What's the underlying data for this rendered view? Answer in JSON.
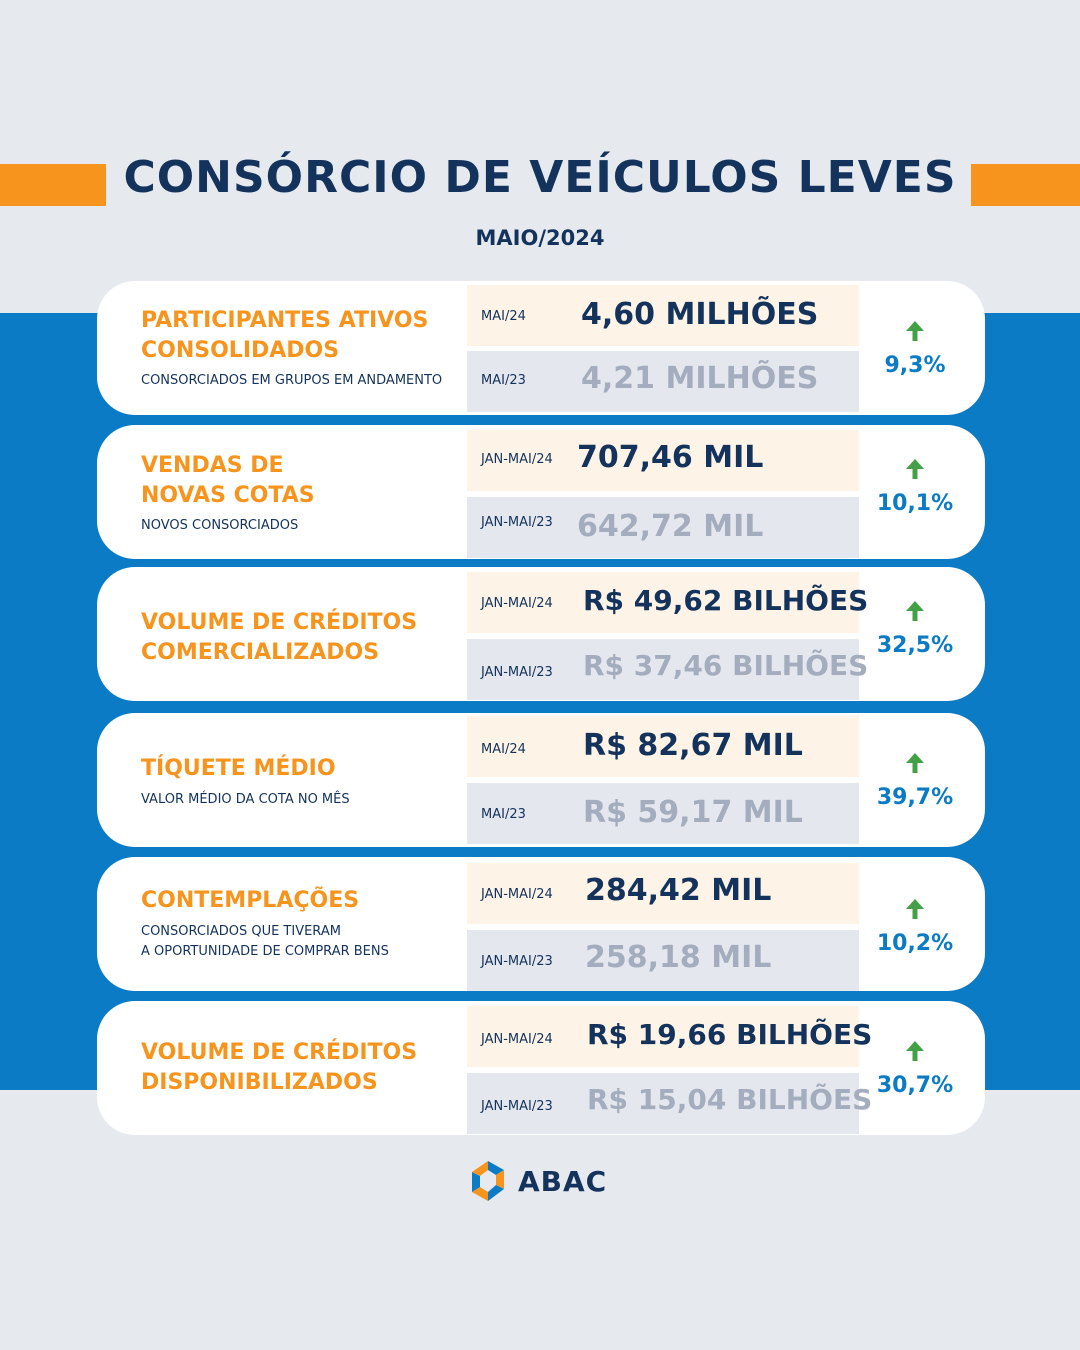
{
  "title": "CONSÓRCIO DE VEÍCULOS LEVES",
  "subtitle": "MAIO/2024",
  "colors": {
    "accent_orange": "#f7941d",
    "navy": "#14335c",
    "blue": "#0a7bc4",
    "up_green": "#43a047"
  },
  "cards": [
    {
      "title": "PARTICIPANTES ATIVOS\nCONSOLIDADOS",
      "description": "CONSORCIADOS EM GRUPOS EM ANDAMENTO",
      "current": {
        "period": "MAI/24",
        "value": "4,60 MILHÕES"
      },
      "previous": {
        "period": "MAI/23",
        "value": "4,21 MILHÕES"
      },
      "change": "9,3%",
      "trend_icon": "arrow-up-icon"
    },
    {
      "title": "VENDAS DE\nNOVAS COTAS",
      "description": "NOVOS CONSORCIADOS",
      "current": {
        "period": "JAN-MAI/24",
        "value": "707,46 MIL"
      },
      "previous": {
        "period": "JAN-MAI/23",
        "value": "642,72 MIL"
      },
      "change": "10,1%",
      "trend_icon": "arrow-up-icon"
    },
    {
      "title": "VOLUME DE CRÉDITOS\nCOMERCIALIZADOS",
      "description": "",
      "current": {
        "period": "JAN-MAI/24",
        "value": "R$ 49,62 BILHÕES"
      },
      "previous": {
        "period": "JAN-MAI/23",
        "value": "R$ 37,46 BILHÕES"
      },
      "change": "32,5%",
      "trend_icon": "arrow-up-icon"
    },
    {
      "title": "TÍQUETE MÉDIO",
      "description": "VALOR MÉDIO DA COTA NO MÊS",
      "current": {
        "period": "MAI/24",
        "value": "R$ 82,67 MIL"
      },
      "previous": {
        "period": "MAI/23",
        "value": "R$ 59,17 MIL"
      },
      "change": "39,7%",
      "trend_icon": "arrow-up-icon"
    },
    {
      "title": "CONTEMPLAÇÕES",
      "description": "CONSORCIADOS QUE TIVERAM\nA OPORTUNIDADE DE COMPRAR BENS",
      "current": {
        "period": "JAN-MAI/24",
        "value": "284,42 MIL"
      },
      "previous": {
        "period": "JAN-MAI/23",
        "value": "258,18 MIL"
      },
      "change": "10,2%",
      "trend_icon": "arrow-up-icon"
    },
    {
      "title": "VOLUME DE CRÉDITOS\nDISPONIBILIZADOS",
      "description": "",
      "current": {
        "period": "JAN-MAI/24",
        "value": "R$ 19,66 BILHÕES"
      },
      "previous": {
        "period": "JAN-MAI/23",
        "value": "R$ 15,04 BILHÕES"
      },
      "change": "30,7%",
      "trend_icon": "arrow-up-icon"
    }
  ],
  "logo": {
    "text": "ABAC",
    "icon": "abac-logo-icon"
  }
}
